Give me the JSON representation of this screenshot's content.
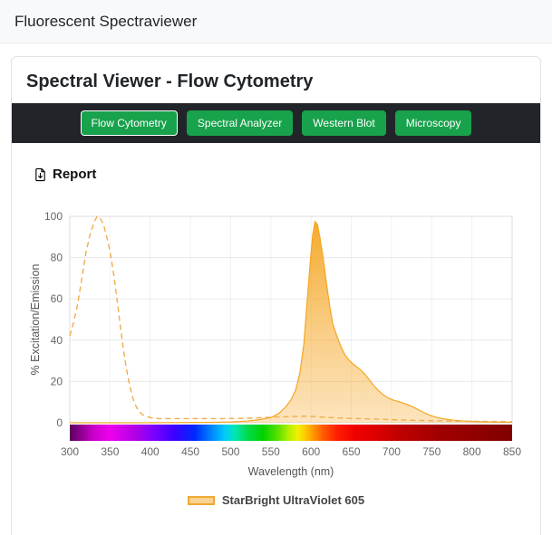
{
  "header": {
    "title": "Fluorescent Spectraviewer"
  },
  "card": {
    "title": "Spectral Viewer - Flow Cytometry"
  },
  "nav": {
    "tabs": [
      {
        "label": "Flow Cytometry",
        "active": true
      },
      {
        "label": "Spectral Analyzer",
        "active": false
      },
      {
        "label": "Western Blot",
        "active": false
      },
      {
        "label": "Microscopy",
        "active": false
      }
    ]
  },
  "toolbar": {
    "report_label": "Report",
    "report_icon": "file-arrow-down-icon"
  },
  "colors": {
    "tab_green": "#18a24c",
    "nav_dark": "#212529",
    "accent_orange": "#f0a830"
  },
  "chart_data": {
    "type": "area",
    "title": "",
    "xlabel": "Wavelength (nm)",
    "ylabel": "% Excitation/Emission",
    "xlim": [
      300,
      850
    ],
    "ylim": [
      0,
      100
    ],
    "x_ticks": [
      300,
      350,
      400,
      450,
      500,
      550,
      600,
      650,
      700,
      750,
      800,
      850
    ],
    "y_ticks": [
      0,
      20,
      40,
      60,
      80,
      100
    ],
    "grid": true,
    "legend": {
      "position": "bottom",
      "entries": [
        {
          "label": "StarBright UltraViolet 605",
          "color": "#f0a830"
        }
      ]
    },
    "series": [
      {
        "name": "StarBright UltraViolet 605 Excitation",
        "style": "dashed-line",
        "color": "#f0ad4e",
        "x": [
          300,
          305,
          310,
          315,
          320,
          325,
          330,
          334,
          338,
          342,
          346,
          350,
          355,
          360,
          365,
          370,
          375,
          380,
          385,
          390,
          400,
          410,
          430,
          460,
          490,
          520,
          545,
          560,
          575,
          590,
          605,
          620,
          640,
          660,
          680,
          700,
          725,
          750,
          775,
          800,
          825,
          850
        ],
        "y": [
          42,
          49,
          58,
          70,
          82,
          91,
          97,
          100,
          99,
          96,
          90,
          83,
          71,
          56,
          40,
          27,
          17,
          10,
          6,
          4,
          2.5,
          2,
          2,
          2,
          2,
          2.2,
          2.6,
          2.8,
          3,
          3.2,
          3,
          2.6,
          2.2,
          2,
          1.8,
          1.5,
          1.2,
          1,
          0.8,
          0.7,
          0.6,
          0.5
        ]
      },
      {
        "name": "StarBright UltraViolet 605 Emission",
        "style": "filled-area",
        "color": "#f5a623",
        "x": [
          300,
          400,
          480,
          500,
          520,
          535,
          550,
          560,
          568,
          575,
          581,
          586,
          591,
          595,
          599,
          602,
          605,
          608,
          611,
          615,
          619,
          623,
          627,
          632,
          637,
          642,
          647,
          652,
          657,
          662,
          667,
          672,
          678,
          684,
          690,
          696,
          702,
          708,
          714,
          720,
          727,
          734,
          741,
          748,
          756,
          766,
          778,
          792,
          810,
          830,
          850
        ],
        "y": [
          0,
          0,
          0.2,
          0.4,
          0.8,
          1.5,
          2.5,
          4.5,
          7.5,
          11,
          16,
          24,
          38,
          58,
          78,
          91,
          97.5,
          96,
          90,
          80,
          68,
          57,
          48,
          42,
          37,
          33,
          30.5,
          28.5,
          27,
          25.5,
          23.5,
          21,
          18,
          15.5,
          13.5,
          12,
          11,
          10.3,
          9.6,
          8.8,
          7.6,
          6.2,
          4.8,
          3.6,
          2.6,
          1.8,
          1.2,
          0.8,
          0.5,
          0.3,
          0.2
        ]
      }
    ],
    "spectrum_bar": {
      "stops": [
        {
          "wavelength": 300,
          "color": "#5c005c"
        },
        {
          "wavelength": 330,
          "color": "#cc00cc"
        },
        {
          "wavelength": 350,
          "color": "#ee00ee"
        },
        {
          "wavelength": 380,
          "color": "#b400e6"
        },
        {
          "wavelength": 405,
          "color": "#7a00ff"
        },
        {
          "wavelength": 430,
          "color": "#3c00ff"
        },
        {
          "wavelength": 455,
          "color": "#0028ff"
        },
        {
          "wavelength": 475,
          "color": "#0080ff"
        },
        {
          "wavelength": 492,
          "color": "#00c8ff"
        },
        {
          "wavelength": 505,
          "color": "#00e6b4"
        },
        {
          "wavelength": 520,
          "color": "#00dc50"
        },
        {
          "wavelength": 540,
          "color": "#00d200"
        },
        {
          "wavelength": 558,
          "color": "#55e000"
        },
        {
          "wavelength": 572,
          "color": "#b4f000"
        },
        {
          "wavelength": 583,
          "color": "#f0f000"
        },
        {
          "wavelength": 593,
          "color": "#ffc800"
        },
        {
          "wavelength": 603,
          "color": "#ff9600"
        },
        {
          "wavelength": 615,
          "color": "#ff5a00"
        },
        {
          "wavelength": 632,
          "color": "#ff1e00"
        },
        {
          "wavelength": 655,
          "color": "#f00000"
        },
        {
          "wavelength": 680,
          "color": "#dc0000"
        },
        {
          "wavelength": 710,
          "color": "#c00000"
        },
        {
          "wavelength": 760,
          "color": "#a00000"
        },
        {
          "wavelength": 850,
          "color": "#800000"
        }
      ]
    }
  }
}
